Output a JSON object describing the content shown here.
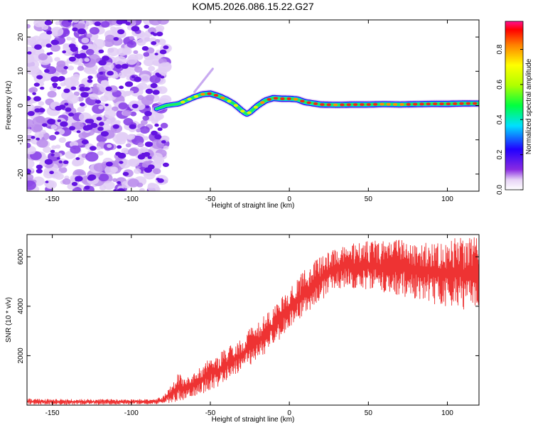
{
  "title": "KOM5.2026.086.15.22.G27",
  "chart_data": [
    {
      "type": "heatmap",
      "xlabel": "Height of straight line (km)",
      "ylabel": "Frequency (Hz)",
      "xlim": [
        -166,
        120
      ],
      "ylim": [
        -25,
        25
      ],
      "x_ticks": [
        -150,
        -100,
        -50,
        0,
        50,
        100
      ],
      "x_tick_labels": [
        "-150",
        "-100",
        "-50",
        "0",
        "50",
        "100"
      ],
      "y_ticks": [
        -20,
        -10,
        0,
        10,
        20
      ],
      "y_tick_labels": [
        "-20",
        "-10",
        "0",
        "10",
        "20"
      ],
      "noise_region_x": [
        -166,
        -78
      ],
      "ridge": {
        "x": [
          -84,
          -78,
          -70,
          -60,
          -55,
          -50,
          -45,
          -40,
          -35,
          -30,
          -27,
          -25,
          -20,
          -15,
          -10,
          -5,
          0,
          5,
          10,
          20,
          30,
          40,
          50,
          60,
          70,
          80,
          90,
          100,
          110,
          120
        ],
        "freq": [
          -1,
          0,
          0.5,
          2.5,
          3.3,
          3.5,
          2.8,
          1.8,
          0.5,
          -1.5,
          -2.5,
          -2,
          0,
          1.5,
          2.2,
          2,
          2,
          1.8,
          1,
          0.3,
          0.2,
          0.3,
          0.3,
          0.4,
          0.3,
          0.4,
          0.5,
          0.5,
          0.6,
          0.6
        ],
        "amplitude": [
          0.35,
          0.5,
          0.6,
          0.75,
          0.85,
          0.9,
          0.85,
          0.8,
          0.75,
          0.7,
          0.65,
          0.7,
          0.8,
          0.85,
          0.9,
          0.95,
          0.9,
          0.85,
          0.9,
          0.9,
          0.85,
          0.9,
          0.9,
          0.85,
          0.85,
          0.9,
          0.9,
          0.95,
          0.9,
          0.85
        ]
      },
      "colorbar": {
        "label": "Normalized spectral amplitude",
        "range": [
          0,
          0.96
        ],
        "ticks": [
          0.0,
          0.2,
          0.4,
          0.6,
          0.8
        ],
        "tick_labels": [
          "0.0",
          "0.2",
          "0.4",
          "0.6",
          "0.8"
        ]
      }
    },
    {
      "type": "line",
      "xlabel": "Height of straight line (km)",
      "ylabel": "SNR (10 * v/v)",
      "xlim": [
        -166,
        120
      ],
      "ylim": [
        0,
        6900
      ],
      "x_ticks": [
        -150,
        -100,
        -50,
        0,
        50,
        100
      ],
      "x_tick_labels": [
        "-150",
        "-100",
        "-50",
        "0",
        "50",
        "100"
      ],
      "y_ticks": [
        2000,
        4000,
        6000
      ],
      "y_tick_labels": [
        "2000",
        "4000",
        "6000"
      ],
      "series": [
        {
          "name": "SNR",
          "color": "#ee3333",
          "x": [
            -166,
            -150,
            -125,
            -100,
            -85,
            -80,
            -75,
            -70,
            -65,
            -60,
            -55,
            -50,
            -45,
            -40,
            -35,
            -30,
            -25,
            -20,
            -15,
            -10,
            -5,
            0,
            5,
            10,
            15,
            20,
            25,
            30,
            35,
            40,
            45,
            50,
            55,
            60,
            70,
            80,
            90,
            100,
            110,
            120
          ],
          "lower": [
            20,
            20,
            20,
            20,
            30,
            60,
            100,
            150,
            250,
            350,
            450,
            600,
            750,
            950,
            1150,
            1350,
            1600,
            1850,
            2100,
            2400,
            2700,
            3000,
            3300,
            3600,
            3900,
            4200,
            4500,
            4700,
            4750,
            4700,
            4650,
            4600,
            4550,
            4500,
            4400,
            4250,
            4100,
            3950,
            3850,
            3800
          ],
          "upper": [
            280,
            250,
            250,
            240,
            260,
            350,
            800,
            1350,
            1100,
            1300,
            1700,
            2050,
            2050,
            2300,
            2550,
            2700,
            3100,
            3300,
            3700,
            4000,
            4350,
            4700,
            5100,
            5500,
            5800,
            6000,
            6200,
            6400,
            6500,
            6550,
            6600,
            6650,
            6650,
            6650,
            6700,
            6700,
            6750,
            6750,
            6800,
            6800
          ]
        }
      ]
    }
  ]
}
